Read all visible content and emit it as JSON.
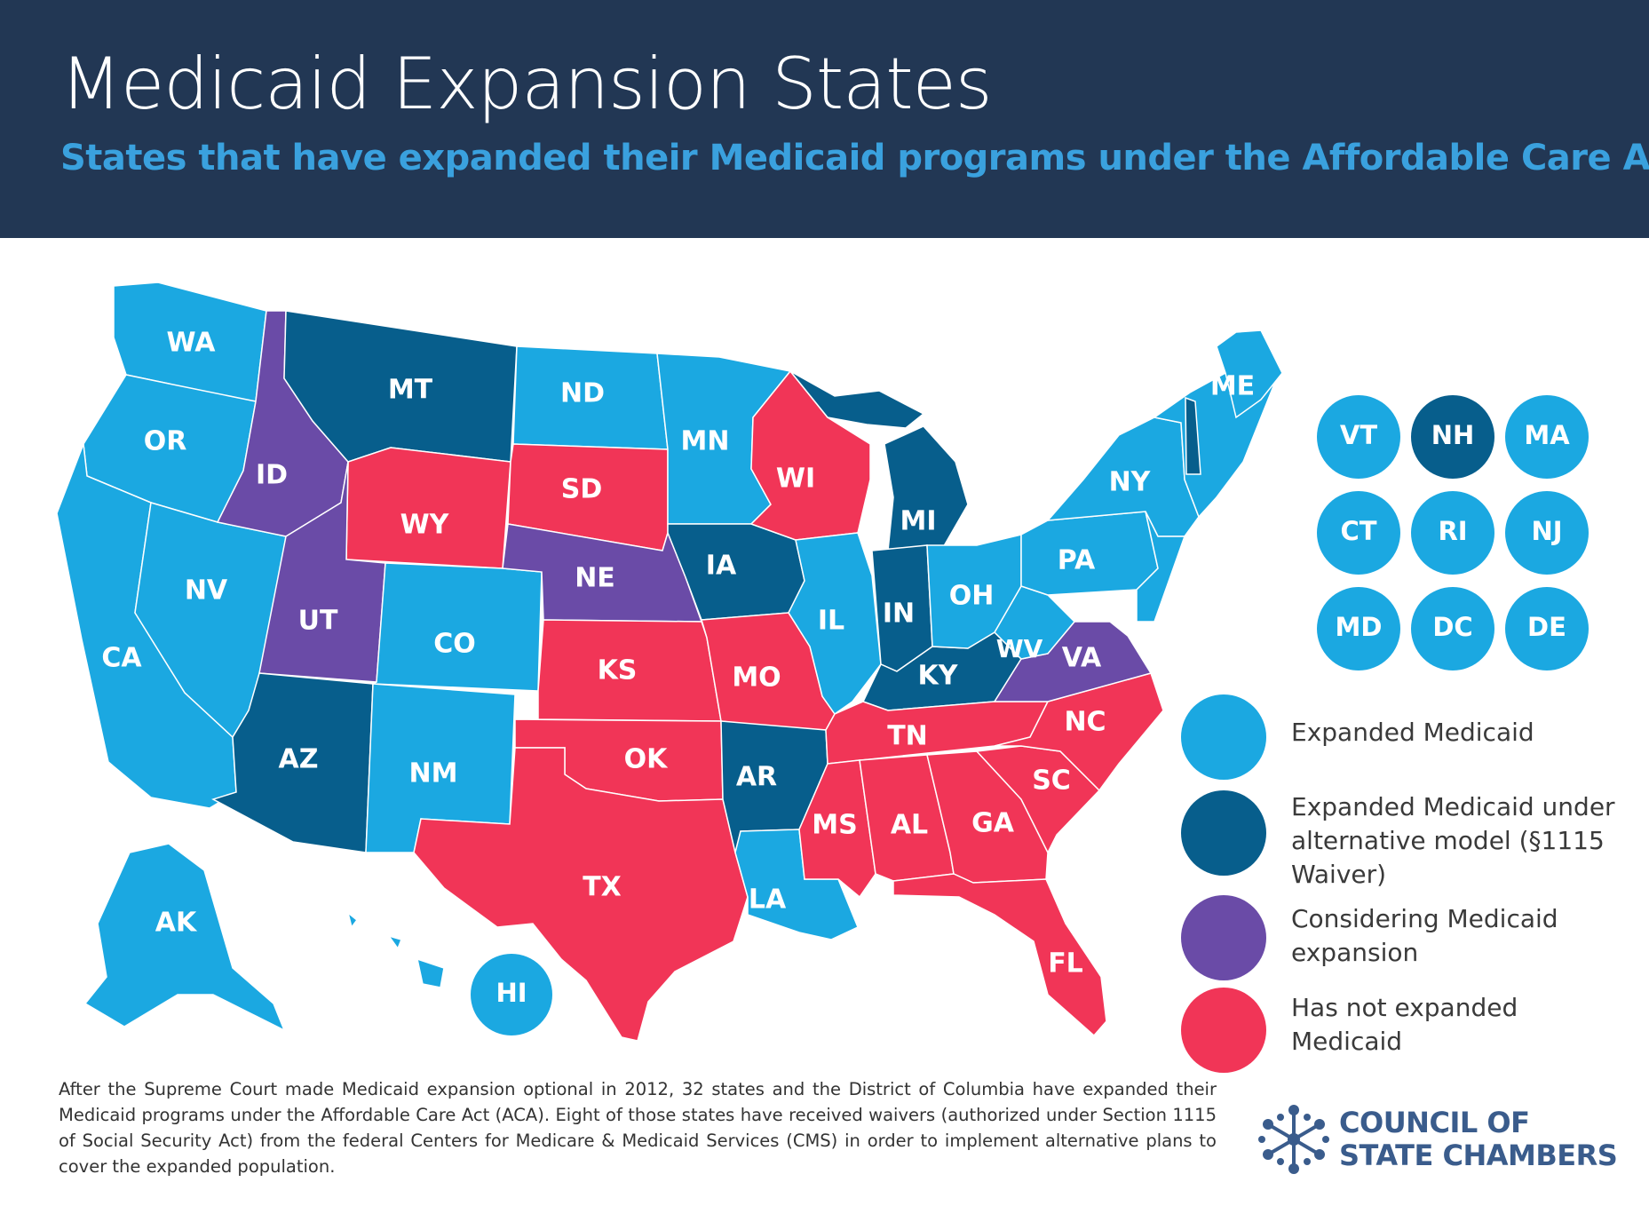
{
  "header": {
    "title": "Medicaid Expansion States",
    "subtitle": "States that have expanded their Medicaid programs under the Affordable Care Act"
  },
  "colors": {
    "expanded": "#1ba8e1",
    "waiver": "#075e8c",
    "considering": "#6a4ba7",
    "not_expanded": "#f13557",
    "header_bg": "#223754",
    "subtitle": "#3aa1de",
    "logo": "#3a5c8c"
  },
  "states": [
    {
      "abbr": "WA",
      "status": "expanded"
    },
    {
      "abbr": "OR",
      "status": "expanded"
    },
    {
      "abbr": "CA",
      "status": "expanded"
    },
    {
      "abbr": "NV",
      "status": "expanded"
    },
    {
      "abbr": "ID",
      "status": "considering"
    },
    {
      "abbr": "MT",
      "status": "waiver"
    },
    {
      "abbr": "WY",
      "status": "not_expanded"
    },
    {
      "abbr": "UT",
      "status": "considering"
    },
    {
      "abbr": "CO",
      "status": "expanded"
    },
    {
      "abbr": "AZ",
      "status": "waiver"
    },
    {
      "abbr": "NM",
      "status": "expanded"
    },
    {
      "abbr": "ND",
      "status": "expanded"
    },
    {
      "abbr": "SD",
      "status": "not_expanded"
    },
    {
      "abbr": "NE",
      "status": "considering"
    },
    {
      "abbr": "KS",
      "status": "not_expanded"
    },
    {
      "abbr": "OK",
      "status": "not_expanded"
    },
    {
      "abbr": "TX",
      "status": "not_expanded"
    },
    {
      "abbr": "MN",
      "status": "expanded"
    },
    {
      "abbr": "IA",
      "status": "waiver"
    },
    {
      "abbr": "MO",
      "status": "not_expanded"
    },
    {
      "abbr": "AR",
      "status": "waiver"
    },
    {
      "abbr": "LA",
      "status": "expanded"
    },
    {
      "abbr": "WI",
      "status": "not_expanded"
    },
    {
      "abbr": "IL",
      "status": "expanded"
    },
    {
      "abbr": "MI",
      "status": "waiver"
    },
    {
      "abbr": "IN",
      "status": "waiver"
    },
    {
      "abbr": "KY",
      "status": "waiver"
    },
    {
      "abbr": "TN",
      "status": "not_expanded"
    },
    {
      "abbr": "MS",
      "status": "not_expanded"
    },
    {
      "abbr": "AL",
      "status": "not_expanded"
    },
    {
      "abbr": "GA",
      "status": "not_expanded"
    },
    {
      "abbr": "FL",
      "status": "not_expanded"
    },
    {
      "abbr": "SC",
      "status": "not_expanded"
    },
    {
      "abbr": "NC",
      "status": "not_expanded"
    },
    {
      "abbr": "VA",
      "status": "considering"
    },
    {
      "abbr": "WV",
      "status": "expanded"
    },
    {
      "abbr": "OH",
      "status": "expanded"
    },
    {
      "abbr": "PA",
      "status": "expanded"
    },
    {
      "abbr": "NY",
      "status": "expanded"
    },
    {
      "abbr": "ME",
      "status": "expanded"
    },
    {
      "abbr": "AK",
      "status": "expanded"
    },
    {
      "abbr": "HI",
      "status": "expanded"
    }
  ],
  "small_states": [
    {
      "abbr": "VT",
      "status": "expanded"
    },
    {
      "abbr": "NH",
      "status": "waiver"
    },
    {
      "abbr": "MA",
      "status": "expanded"
    },
    {
      "abbr": "CT",
      "status": "expanded"
    },
    {
      "abbr": "RI",
      "status": "expanded"
    },
    {
      "abbr": "NJ",
      "status": "expanded"
    },
    {
      "abbr": "MD",
      "status": "expanded"
    },
    {
      "abbr": "DC",
      "status": "expanded"
    },
    {
      "abbr": "DE",
      "status": "expanded"
    }
  ],
  "legend": [
    {
      "key": "expanded",
      "label": "Expanded Medicaid"
    },
    {
      "key": "waiver",
      "label": "Expanded Medicaid under alternative model (§1115 Waiver)"
    },
    {
      "key": "considering",
      "label": "Considering Medicaid expansion"
    },
    {
      "key": "not_expanded",
      "label": "Has not expanded Medicaid"
    }
  ],
  "footnote": "After the Supreme Court made Medicaid expansion optional in 2012, 32 states and the District of Columbia have expanded their Medicaid programs under the Affordable Care Act (ACA). Eight of those states have received waivers (authorized under Section 1115 of Social Security Act) from the federal Centers for Medicare & Medicaid Services (CMS) in order to implement alternative plans to cover the expanded population.",
  "logo": {
    "icon": "snowflake-network-icon",
    "line1": "COUNCIL OF",
    "line2": "STATE CHAMBERS"
  }
}
